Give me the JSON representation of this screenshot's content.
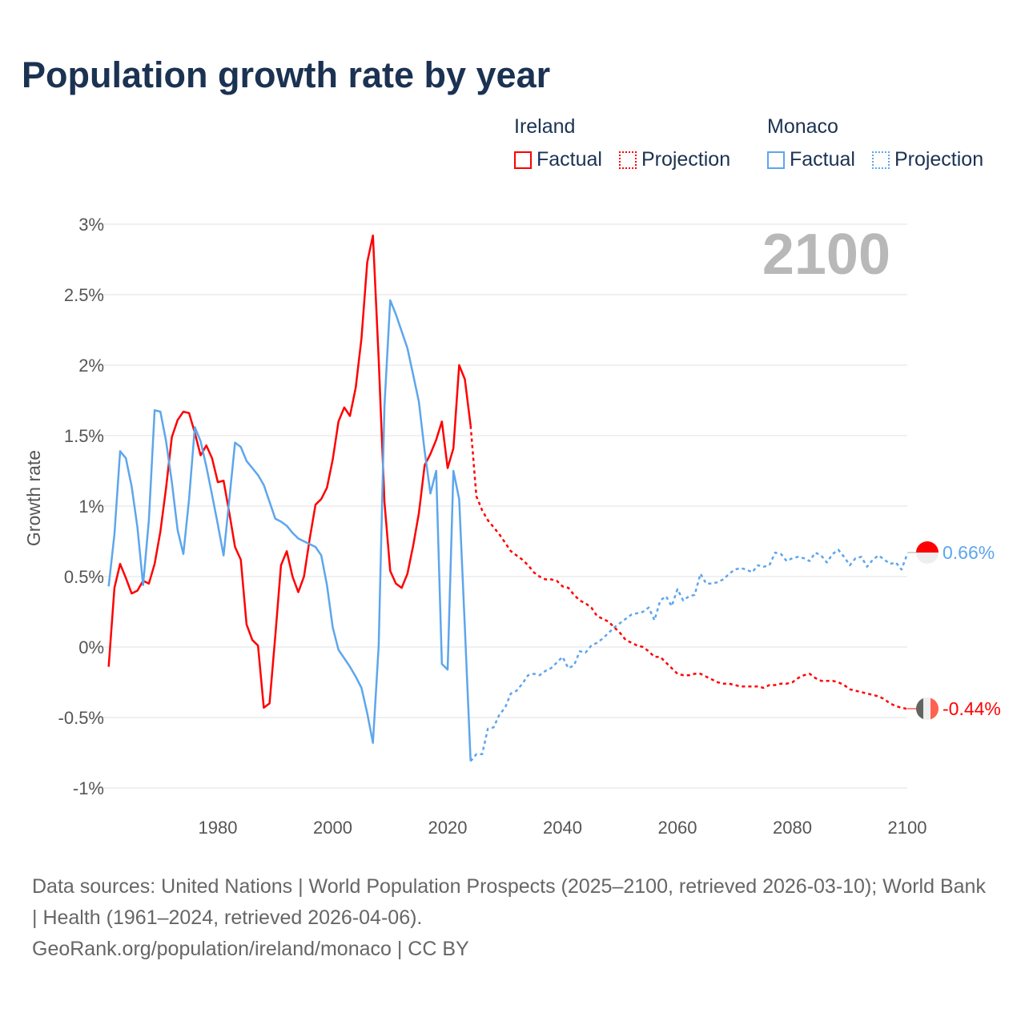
{
  "title": "Population growth rate by year",
  "legend": {
    "groups": [
      {
        "name": "Ireland",
        "color": "#ff0000",
        "factual": "Factual",
        "projection": "Projection"
      },
      {
        "name": "Monaco",
        "color": "#5da6ec",
        "factual": "Factual",
        "projection": "Projection"
      }
    ]
  },
  "year_label": "2100",
  "end_labels": {
    "monaco": "0.66%",
    "ireland": "-0.44%"
  },
  "footer": {
    "sources": "Data sources: United Nations | World Population Prospects (2025–2100, retrieved 2026-03-10); World Bank | Health (1961–2024, retrieved 2026-04-06).",
    "credit": "GeoRank.org/population/ireland/monaco | CC BY"
  },
  "chart_data": {
    "type": "line",
    "title": "Population growth rate by year",
    "xlabel": "",
    "ylabel": "Growth rate",
    "xlim": [
      1961,
      2100
    ],
    "ylim": [
      -1,
      3
    ],
    "x_ticks": [
      1980,
      2000,
      2020,
      2040,
      2060,
      2080,
      2100
    ],
    "y_ticks": [
      {
        "v": 3,
        "label": "3%"
      },
      {
        "v": 2.5,
        "label": "2.5%"
      },
      {
        "v": 2,
        "label": "2%"
      },
      {
        "v": 1.5,
        "label": "1.5%"
      },
      {
        "v": 1,
        "label": "1%"
      },
      {
        "v": 0.5,
        "label": "0.5%"
      },
      {
        "v": 0,
        "label": "0%"
      },
      {
        "v": -0.5,
        "label": "-0.5%"
      },
      {
        "v": -1,
        "label": "-1%"
      }
    ],
    "grid": true,
    "legend_position": "top-right",
    "series": [
      {
        "name": "Ireland",
        "kind": "Factual",
        "color": "#ff0000",
        "start_year": 1961,
        "values": [
          -0.14,
          0.42,
          0.59,
          0.49,
          0.38,
          0.4,
          0.47,
          0.45,
          0.59,
          0.82,
          1.13,
          1.49,
          1.61,
          1.67,
          1.66,
          1.52,
          1.36,
          1.43,
          1.34,
          1.17,
          1.18,
          0.95,
          0.71,
          0.62,
          0.16,
          0.05,
          0.01,
          -0.43,
          -0.4,
          0.08,
          0.58,
          0.68,
          0.5,
          0.39,
          0.5,
          0.77,
          1.01,
          1.05,
          1.13,
          1.33,
          1.6,
          1.7,
          1.64,
          1.84,
          2.19,
          2.73,
          2.92,
          2.04,
          1.03,
          0.54,
          0.45,
          0.42,
          0.52,
          0.72,
          0.95,
          1.29,
          1.37,
          1.47,
          1.6,
          1.27,
          1.41,
          2.0,
          1.9,
          1.57
        ]
      },
      {
        "name": "Ireland",
        "kind": "Projection",
        "color": "#ff0000",
        "start_year": 2025,
        "values": [
          1.07,
          0.97,
          0.9,
          0.85,
          0.8,
          0.74,
          0.68,
          0.65,
          0.62,
          0.58,
          0.53,
          0.5,
          0.48,
          0.48,
          0.47,
          0.43,
          0.42,
          0.37,
          0.33,
          0.31,
          0.28,
          0.22,
          0.2,
          0.18,
          0.14,
          0.1,
          0.05,
          0.03,
          0.01,
          0.0,
          -0.03,
          -0.07,
          -0.07,
          -0.11,
          -0.15,
          -0.19,
          -0.2,
          -0.2,
          -0.19,
          -0.19,
          -0.21,
          -0.23,
          -0.25,
          -0.26,
          -0.26,
          -0.27,
          -0.28,
          -0.28,
          -0.28,
          -0.28,
          -0.29,
          -0.27,
          -0.27,
          -0.26,
          -0.26,
          -0.25,
          -0.22,
          -0.2,
          -0.19,
          -0.22,
          -0.24,
          -0.24,
          -0.24,
          -0.25,
          -0.27,
          -0.3,
          -0.31,
          -0.32,
          -0.33,
          -0.34,
          -0.35,
          -0.37,
          -0.4,
          -0.42,
          -0.43,
          -0.44
        ]
      },
      {
        "name": "Monaco",
        "kind": "Factual",
        "color": "#5da6ec",
        "start_year": 1961,
        "values": [
          0.43,
          0.8,
          1.39,
          1.34,
          1.14,
          0.85,
          0.44,
          0.9,
          1.68,
          1.67,
          1.46,
          1.17,
          0.83,
          0.66,
          1.05,
          1.56,
          1.46,
          1.28,
          1.08,
          0.87,
          0.65,
          1.05,
          1.45,
          1.42,
          1.32,
          1.27,
          1.22,
          1.15,
          1.03,
          0.91,
          0.89,
          0.86,
          0.81,
          0.77,
          0.75,
          0.73,
          0.71,
          0.65,
          0.44,
          0.14,
          -0.02,
          -0.08,
          -0.14,
          -0.21,
          -0.29,
          -0.47,
          -0.68,
          0.01,
          1.71,
          2.46,
          2.36,
          2.24,
          2.12,
          1.93,
          1.74,
          1.39,
          1.09,
          1.25,
          -0.12,
          -0.16,
          1.25,
          1.05,
          0.14,
          -0.81
        ]
      },
      {
        "name": "Monaco",
        "kind": "Projection",
        "color": "#5da6ec",
        "start_year": 2025,
        "values": [
          -0.76,
          -0.76,
          -0.58,
          -0.57,
          -0.48,
          -0.43,
          -0.33,
          -0.31,
          -0.26,
          -0.2,
          -0.19,
          -0.2,
          -0.17,
          -0.15,
          -0.11,
          -0.07,
          -0.15,
          -0.13,
          -0.03,
          -0.04,
          0.01,
          0.03,
          0.06,
          0.1,
          0.14,
          0.17,
          0.2,
          0.23,
          0.24,
          0.25,
          0.28,
          0.19,
          0.33,
          0.36,
          0.29,
          0.41,
          0.33,
          0.36,
          0.37,
          0.52,
          0.45,
          0.45,
          0.46,
          0.48,
          0.52,
          0.55,
          0.56,
          0.55,
          0.53,
          0.58,
          0.57,
          0.58,
          0.67,
          0.66,
          0.61,
          0.63,
          0.64,
          0.63,
          0.61,
          0.67,
          0.65,
          0.6,
          0.66,
          0.69,
          0.64,
          0.58,
          0.63,
          0.64,
          0.57,
          0.62,
          0.65,
          0.62,
          0.59,
          0.6,
          0.55,
          0.66
        ]
      }
    ]
  }
}
